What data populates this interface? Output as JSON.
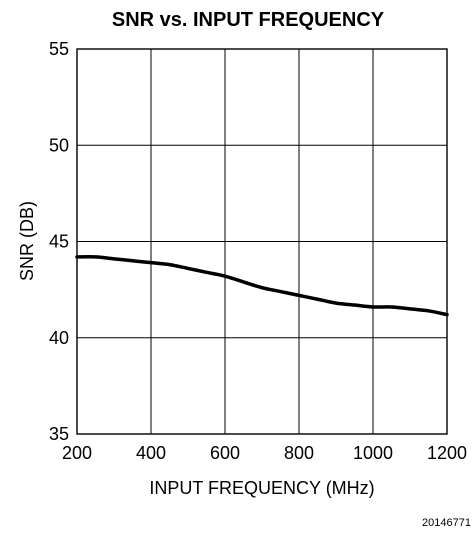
{
  "chart_data": {
    "type": "line",
    "title": "SNR vs. INPUT FREQUENCY",
    "xlabel": "INPUT FREQUENCY (MHz)",
    "ylabel": "SNR (DB)",
    "xlim": [
      200,
      1200
    ],
    "ylim": [
      35,
      55
    ],
    "xticks": [
      200,
      400,
      600,
      800,
      1000,
      1200
    ],
    "yticks": [
      35,
      40,
      45,
      50,
      55
    ],
    "xtick_labels": [
      "200",
      "400",
      "600",
      "800",
      "1000",
      "1200"
    ],
    "ytick_labels": [
      "35",
      "40",
      "45",
      "50",
      "55"
    ],
    "grid": true,
    "legend": "none",
    "series": [
      {
        "color": "#000000",
        "x": [
          200,
          250,
          300,
          350,
          400,
          450,
          500,
          550,
          600,
          650,
          700,
          750,
          800,
          850,
          900,
          950,
          1000,
          1050,
          1100,
          1150,
          1200
        ],
        "y": [
          44.2,
          44.2,
          44.1,
          44.0,
          43.9,
          43.8,
          43.6,
          43.4,
          43.2,
          42.9,
          42.6,
          42.4,
          42.2,
          42.0,
          41.8,
          41.7,
          41.6,
          41.6,
          41.5,
          41.4,
          41.2
        ]
      }
    ]
  },
  "figure_id": "20146771"
}
